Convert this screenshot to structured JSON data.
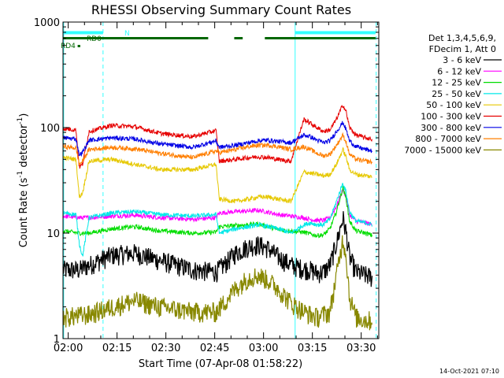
{
  "chart_data": {
    "type": "line",
    "title": "RHESSI Observing Summary Count Rates",
    "xlabel": "Start Time (07-Apr-08 01:58:22)",
    "ylabel_main": "Count Rate (s",
    "ylabel_sup1": "-1",
    "ylabel_mid": " detector",
    "ylabel_sup2": "-1",
    "ylabel_end": ")",
    "y_scale": "log",
    "xlim_minutes": [
      0,
      97
    ],
    "ylim": [
      1,
      1000
    ],
    "x_ticks": [
      {
        "label": "02:00",
        "minute": 1.6
      },
      {
        "label": "02:15",
        "minute": 16.6
      },
      {
        "label": "02:30",
        "minute": 31.6
      },
      {
        "label": "02:45",
        "minute": 46.6
      },
      {
        "label": "03:00",
        "minute": 61.6
      },
      {
        "label": "03:15",
        "minute": 76.6
      },
      {
        "label": "03:30",
        "minute": 91.6
      }
    ],
    "y_ticks": [
      {
        "label": "1",
        "value": 1
      },
      {
        "label": "10",
        "value": 10
      },
      {
        "label": "100",
        "value": 100
      },
      {
        "label": "1000",
        "value": 1000
      }
    ],
    "legend_header": [
      "Det 1,3,4,5,6,9,",
      "FDecim 1, Att 0"
    ],
    "legend_placement": "right",
    "series": [
      {
        "name": "3 - 6 keV",
        "color": "#000000",
        "x": [
          0,
          5,
          8,
          15,
          22,
          30,
          40,
          47,
          50,
          53,
          57,
          60,
          63,
          66,
          70,
          74,
          76,
          78,
          80,
          82,
          84,
          86,
          87,
          88,
          90,
          93,
          95
        ],
        "y": [
          4.5,
          4.5,
          5,
          6.2,
          6.5,
          5.5,
          4.5,
          4.3,
          5.2,
          6.5,
          7.5,
          7.8,
          7.2,
          6,
          5,
          4.6,
          4.5,
          4.2,
          4.3,
          5,
          8,
          14,
          10,
          6,
          4.3,
          4,
          3.8
        ]
      },
      {
        "name": "6 - 12 keV",
        "color": "#ff00ff",
        "x": [
          0,
          5,
          8,
          15,
          22,
          30,
          40,
          47,
          48,
          53,
          57,
          60,
          63,
          66,
          70,
          74,
          76,
          78,
          80,
          82,
          84,
          86,
          87,
          88,
          90,
          93,
          95
        ],
        "y": [
          14.5,
          14,
          14,
          14.5,
          14.8,
          14,
          13.5,
          14,
          15.5,
          16,
          16.2,
          16.5,
          15.8,
          15,
          14.5,
          14,
          13.5,
          13.2,
          13.2,
          14,
          18,
          26,
          22,
          15,
          13,
          12.5,
          12
        ]
      },
      {
        "name": "12 - 25 keV",
        "color": "#00dd00",
        "x": [
          0,
          5,
          8,
          15,
          22,
          30,
          40,
          47,
          48,
          53,
          57,
          60,
          63,
          66,
          70,
          74,
          76,
          78,
          80,
          82,
          84,
          86,
          87,
          88,
          90,
          93,
          95
        ],
        "y": [
          10.5,
          10,
          10,
          11,
          11.5,
          10.5,
          10,
          10.2,
          11.5,
          11.8,
          12,
          12.2,
          11.5,
          10.8,
          10.5,
          10.2,
          9.8,
          9.5,
          9.6,
          11,
          16,
          27,
          21,
          13,
          10.5,
          10,
          9.5
        ]
      },
      {
        "name": "25 - 50 keV",
        "color": "#00e8e8",
        "x": [
          0,
          4,
          5,
          6,
          8,
          15,
          22,
          30,
          40,
          47,
          48,
          53,
          57,
          60,
          63,
          66,
          70,
          74,
          76,
          78,
          80,
          82,
          84,
          86,
          87,
          88,
          90,
          93,
          95
        ],
        "y": [
          15.5,
          15,
          8,
          6,
          14,
          15.5,
          16,
          15,
          14.5,
          15,
          10,
          11,
          11.5,
          12,
          11.5,
          11,
          10,
          12,
          12.5,
          12,
          12,
          13.5,
          20,
          30,
          24,
          16,
          13,
          12.5,
          12
        ]
      },
      {
        "name": "50 - 100 keV",
        "color": "#e6c800",
        "x": [
          0,
          4,
          5,
          6,
          8,
          15,
          22,
          30,
          40,
          47,
          48,
          53,
          57,
          60,
          63,
          66,
          70,
          74,
          76,
          78,
          80,
          82,
          84,
          86,
          87,
          88,
          90,
          93,
          95
        ],
        "y": [
          52,
          50,
          22,
          24,
          48,
          50,
          45,
          40,
          40,
          45,
          21,
          20,
          21,
          22,
          22,
          21,
          20,
          38,
          37,
          36,
          35,
          36,
          45,
          62,
          52,
          40,
          36,
          35,
          34
        ]
      },
      {
        "name": "100 - 300 keV",
        "color": "#e60000",
        "x": [
          0,
          4,
          5,
          6,
          8,
          15,
          22,
          30,
          40,
          47,
          48,
          53,
          57,
          60,
          63,
          66,
          70,
          74,
          76,
          78,
          80,
          82,
          84,
          86,
          87,
          88,
          90,
          93,
          95
        ],
        "y": [
          98,
          95,
          42,
          45,
          92,
          105,
          102,
          88,
          82,
          94,
          48,
          50,
          52,
          53,
          52,
          50,
          48,
          120,
          110,
          100,
          92,
          95,
          120,
          165,
          140,
          100,
          85,
          80,
          78
        ]
      },
      {
        "name": "300 - 800 keV",
        "color": "#0000e6",
        "x": [
          0,
          4,
          5,
          6,
          8,
          15,
          22,
          30,
          40,
          47,
          48,
          53,
          57,
          60,
          63,
          66,
          70,
          74,
          76,
          78,
          80,
          82,
          84,
          86,
          87,
          88,
          90,
          93,
          95
        ],
        "y": [
          80,
          78,
          55,
          58,
          76,
          80,
          78,
          70,
          65,
          75,
          65,
          68,
          72,
          75,
          76,
          74,
          72,
          85,
          82,
          76,
          72,
          75,
          92,
          112,
          95,
          75,
          66,
          62,
          60
        ]
      },
      {
        "name": "800 - 7000 keV",
        "color": "#ff7f00",
        "x": [
          0,
          4,
          5,
          6,
          8,
          15,
          22,
          30,
          40,
          47,
          48,
          53,
          57,
          60,
          63,
          66,
          70,
          74,
          76,
          78,
          80,
          82,
          84,
          86,
          87,
          88,
          90,
          93,
          95
        ],
        "y": [
          66,
          64,
          45,
          48,
          62,
          65,
          63,
          57,
          52,
          60,
          58,
          62,
          66,
          68,
          68,
          66,
          62,
          66,
          62,
          57,
          54,
          56,
          68,
          85,
          72,
          56,
          50,
          48,
          47
        ]
      },
      {
        "name": "7000 - 15000 keV",
        "color": "#888800",
        "x": [
          0,
          8,
          15,
          22,
          30,
          40,
          47,
          50,
          53,
          57,
          60,
          63,
          66,
          70,
          74,
          78,
          82,
          84,
          86,
          87,
          88,
          90,
          93,
          95
        ],
        "y": [
          1.6,
          1.7,
          2.0,
          2.3,
          2.0,
          1.8,
          1.8,
          2.3,
          3.0,
          3.8,
          4.0,
          3.6,
          3.0,
          2.2,
          1.8,
          1.6,
          1.8,
          4.0,
          9.0,
          6.0,
          2.5,
          1.6,
          1.5,
          1.5
        ]
      }
    ],
    "status_bars": [
      {
        "label": "N",
        "color": "#33ffff",
        "row": "top",
        "segments": [
          [
            0,
            12.3
          ],
          [
            71.3,
            96
          ]
        ]
      },
      {
        "label": "RD0",
        "color": "#006600",
        "row": "middle",
        "segments": [
          [
            0,
            44.6
          ],
          [
            52.6,
            55.2
          ],
          [
            62,
            96
          ]
        ]
      },
      {
        "label": "RD4",
        "color": "#006600",
        "row": "bottom",
        "segments": [
          [
            4.5,
            5.3
          ]
        ]
      }
    ],
    "vertical_markers": [
      {
        "minute": 0.2,
        "style": "solid",
        "color": "#33ffff"
      },
      {
        "minute": 12.3,
        "style": "dashed",
        "color": "#33ffff"
      },
      {
        "minute": 71.3,
        "style": "solid",
        "color": "#33ffff"
      },
      {
        "minute": 96.2,
        "style": "dashed",
        "color": "#33ffff"
      }
    ],
    "footer_timestamp": "14-Oct-2021 07:10"
  }
}
